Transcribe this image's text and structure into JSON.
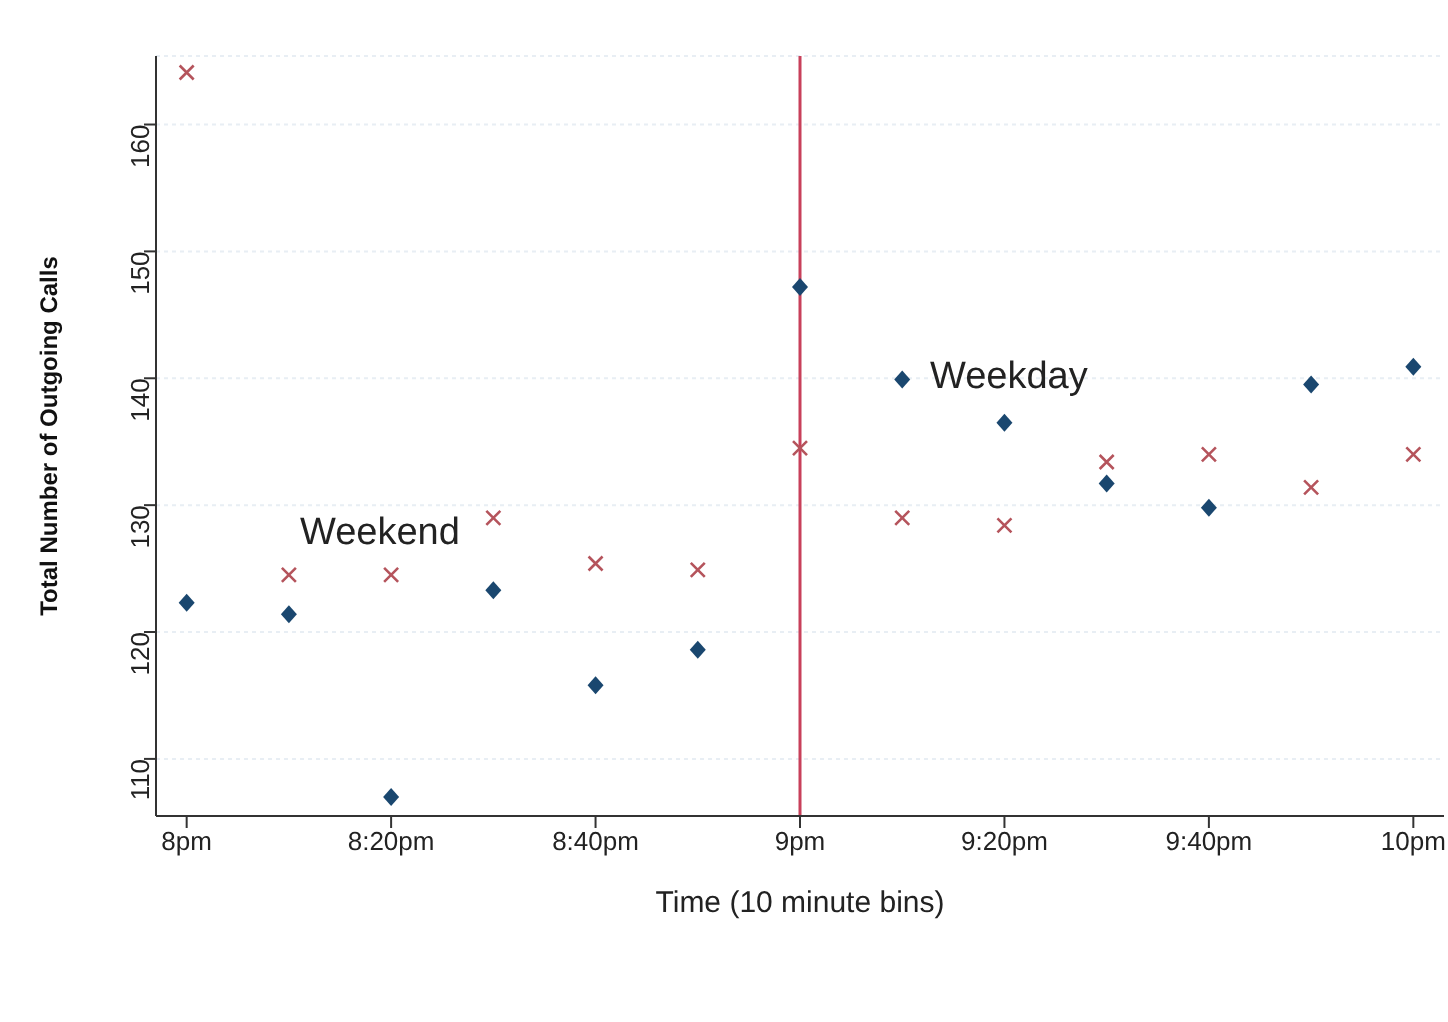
{
  "chart_data": {
    "type": "scatter",
    "xlabel": "Time (10 minute bins)",
    "ylabel": "Total Number of Outgoing Calls",
    "categories": [
      "8pm",
      null,
      "8:20pm",
      null,
      "8:40pm",
      null,
      "9pm",
      null,
      "9:20pm",
      null,
      "9:40pm",
      null,
      "10pm"
    ],
    "series": [
      {
        "color": "#1a476f",
        "marker": "diamond",
        "values": [
          122.3,
          121.4,
          107.0,
          123.3,
          115.8,
          118.6,
          147.2,
          139.9,
          136.5,
          131.7,
          129.8,
          139.5,
          140.9
        ]
      },
      {
        "color": "#b5545c",
        "marker": "cross",
        "values": [
          164.1,
          124.5,
          124.5,
          129.0,
          125.4,
          124.9,
          134.5,
          129.0,
          128.4,
          133.4,
          134.0,
          131.4,
          134.0
        ]
      }
    ],
    "ylim": [
      105.5,
      165.4
    ],
    "yticks": [
      110,
      120,
      130,
      140,
      150,
      160
    ],
    "grid": "y",
    "ref_lines": [
      {
        "axis": "x",
        "value": "9pm",
        "color": "#c8405a"
      }
    ],
    "annotations": [
      "Weekend",
      "Weekday"
    ]
  }
}
